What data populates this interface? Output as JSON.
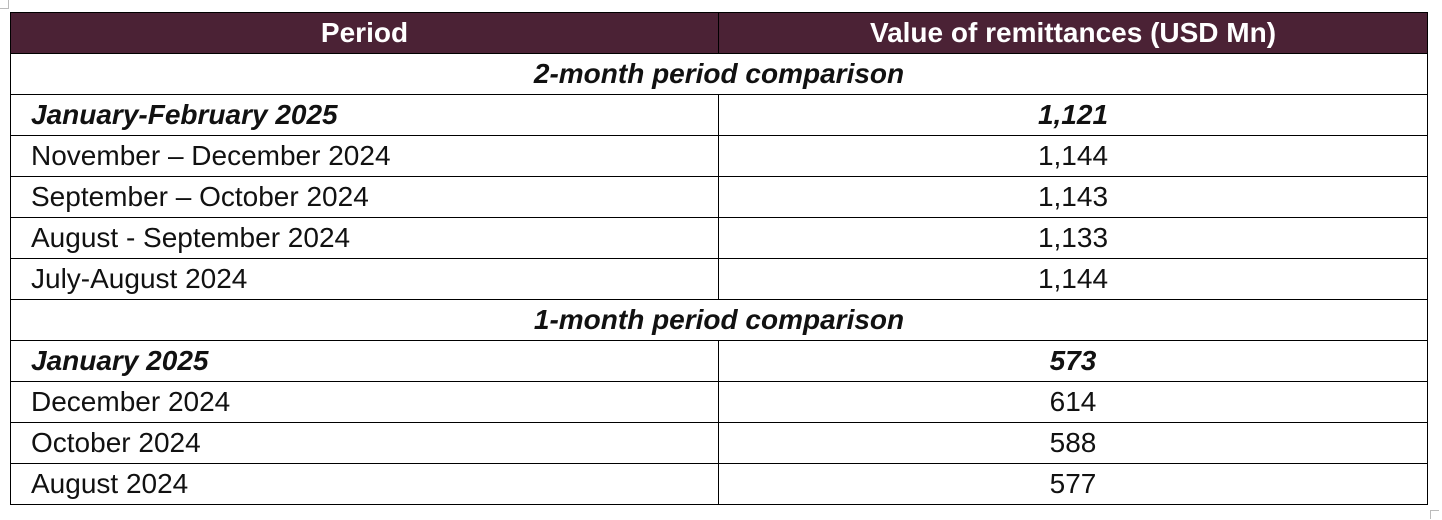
{
  "table": {
    "header": [
      "Period",
      "Value of remittances (USD Mn)"
    ],
    "sections": [
      {
        "title": "2-month period comparison",
        "rows": [
          [
            "January-February 2025",
            "1,121"
          ],
          [
            "November – December 2024",
            "1,144"
          ],
          [
            "September – October 2024",
            "1,143"
          ],
          [
            "August - September 2024",
            "1,133"
          ],
          [
            "July-August 2024",
            "1,144"
          ]
        ]
      },
      {
        "title": "1-month period comparison",
        "rows": [
          [
            "January 2025",
            "573"
          ],
          [
            "December 2024",
            "614"
          ],
          [
            "October 2024",
            "588"
          ],
          [
            "August 2024",
            "577"
          ]
        ]
      }
    ]
  }
}
